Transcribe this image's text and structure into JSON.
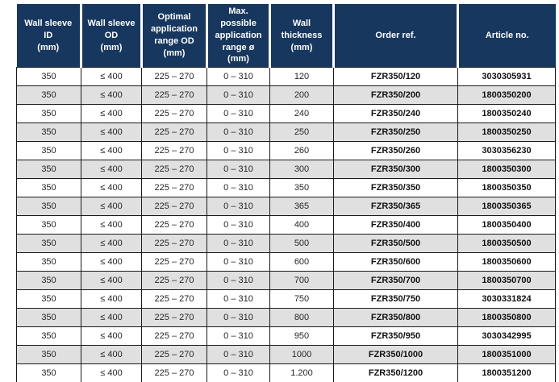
{
  "table": {
    "title": "FZR350 wall sleeve specification table",
    "colors": {
      "header_background": "#17375e",
      "header_text": "#ffffff",
      "alt_row_background": "#e0e0e0",
      "border": "#1a1a1a",
      "body_text": "#262626"
    },
    "column_keys": [
      "wall_sleeve_id",
      "wall_sleeve_od",
      "optimal_range_od",
      "max_range_diameter",
      "wall_thickness",
      "order_ref",
      "article_no"
    ],
    "headers": [
      "Wall sleeve ID\n(mm)",
      "Wall sleeve OD\n(mm)",
      "Optimal\napplication\nrange OD\n(mm)",
      "Max. possible\napplication\nrange ø (mm)",
      "Wall thickness\n(mm)",
      "Order ref.",
      "Article no."
    ],
    "rows": [
      [
        "350",
        "≤ 400",
        "225 – 270",
        "0 – 310",
        "120",
        "FZR350/120",
        "3030305931"
      ],
      [
        "350",
        "≤ 400",
        "225 – 270",
        "0 – 310",
        "200",
        "FZR350/200",
        "1800350200"
      ],
      [
        "350",
        "≤ 400",
        "225 – 270",
        "0 – 310",
        "240",
        "FZR350/240",
        "1800350240"
      ],
      [
        "350",
        "≤ 400",
        "225 – 270",
        "0 – 310",
        "250",
        "FZR350/250",
        "1800350250"
      ],
      [
        "350",
        "≤ 400",
        "225 – 270",
        "0 – 310",
        "260",
        "FZR350/260",
        "3030356230"
      ],
      [
        "350",
        "≤ 400",
        "225 – 270",
        "0 – 310",
        "300",
        "FZR350/300",
        "1800350300"
      ],
      [
        "350",
        "≤ 400",
        "225 – 270",
        "0 – 310",
        "350",
        "FZR350/350",
        "1800350350"
      ],
      [
        "350",
        "≤ 400",
        "225 – 270",
        "0 – 310",
        "365",
        "FZR350/365",
        "1800350365"
      ],
      [
        "350",
        "≤ 400",
        "225 – 270",
        "0 – 310",
        "400",
        "FZR350/400",
        "1800350400"
      ],
      [
        "350",
        "≤ 400",
        "225 – 270",
        "0 – 310",
        "500",
        "FZR350/500",
        "1800350500"
      ],
      [
        "350",
        "≤ 400",
        "225 – 270",
        "0 – 310",
        "600",
        "FZR350/600",
        "1800350600"
      ],
      [
        "350",
        "≤ 400",
        "225 – 270",
        "0 – 310",
        "700",
        "FZR350/700",
        "1800350700"
      ],
      [
        "350",
        "≤ 400",
        "225 – 270",
        "0 – 310",
        "750",
        "FZR350/750",
        "3030331824"
      ],
      [
        "350",
        "≤ 400",
        "225 – 270",
        "0 – 310",
        "800",
        "FZR350/800",
        "1800350800"
      ],
      [
        "350",
        "≤ 400",
        "225 – 270",
        "0 – 310",
        "950",
        "FZR350/950",
        "3030342995"
      ],
      [
        "350",
        "≤ 400",
        "225 – 270",
        "0 – 310",
        "1000",
        "FZR350/1000",
        "1800351000"
      ],
      [
        "350",
        "≤ 400",
        "225 – 270",
        "0 – 310",
        "1.200",
        "FZR350/1200",
        "1800351200"
      ]
    ]
  }
}
